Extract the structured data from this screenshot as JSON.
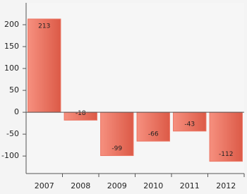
{
  "chart_data": {
    "type": "bar",
    "categories": [
      "2007",
      "2008",
      "2009",
      "2010",
      "2011",
      "2012"
    ],
    "values": [
      213,
      -18,
      -99,
      -66,
      -43,
      -112
    ],
    "color": "#ec7361",
    "ylim": [
      -140,
      250
    ],
    "yticks": [
      -100,
      -50,
      0,
      50,
      100,
      150,
      200
    ],
    "grid": false
  }
}
